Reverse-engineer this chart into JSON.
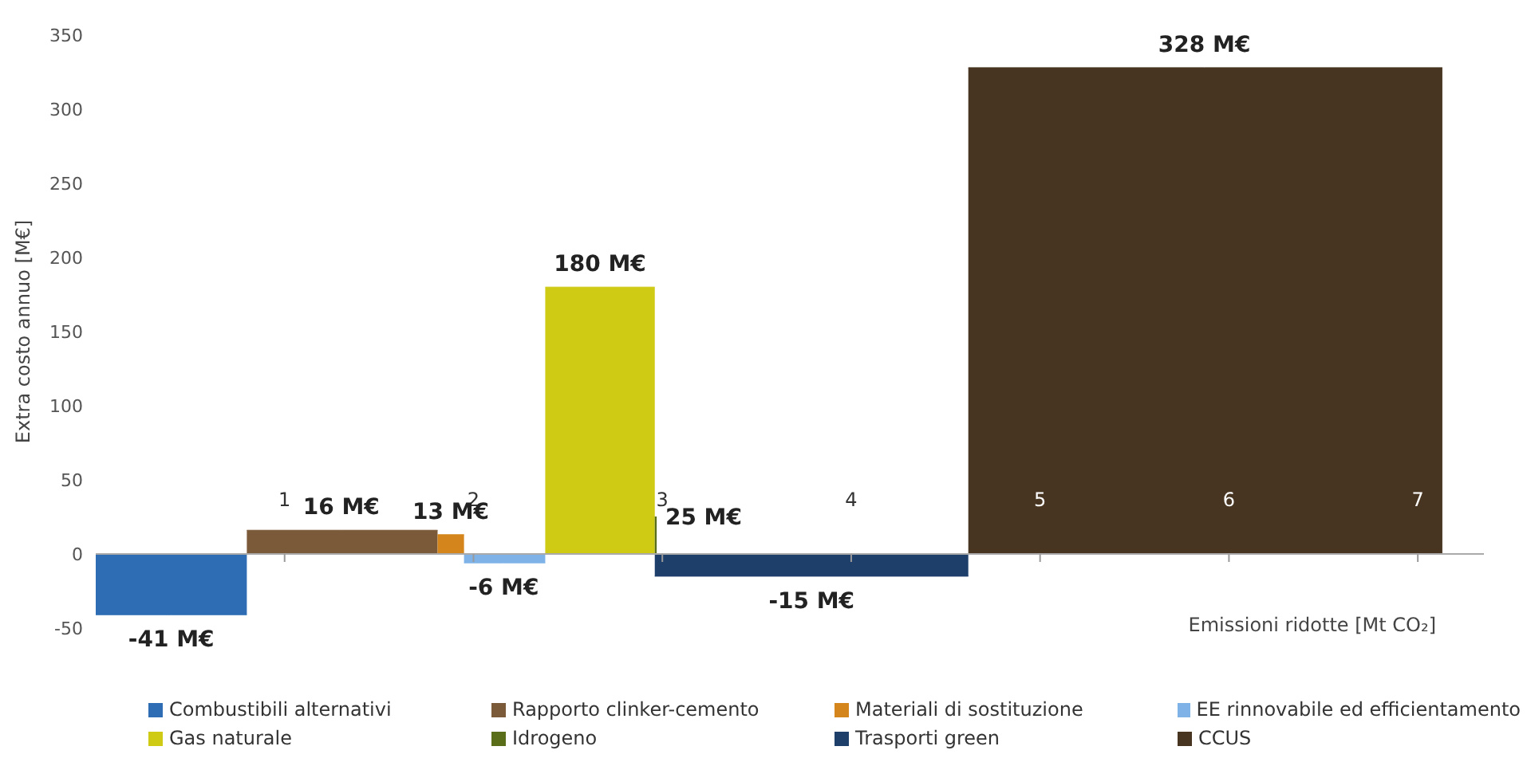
{
  "chart_data": {
    "type": "area",
    "ylabel": "Extra costo annuo [M€]",
    "xlabel": "Emissioni ridotte [Mt CO₂]",
    "xlim": [
      0,
      7.35
    ],
    "xticks": [
      1,
      2,
      3,
      4,
      5,
      6,
      7
    ],
    "ylim": [
      -50,
      350
    ],
    "yticks": [
      -50,
      0,
      50,
      100,
      150,
      200,
      250,
      300,
      350
    ],
    "grid": false,
    "legend": "bottom",
    "series": [
      {
        "name": "Combustibili alternativi",
        "color": "#2e6db4",
        "x": [
          0,
          0.4,
          0.8
        ],
        "values": [
          -41,
          -41,
          -41
        ],
        "value_labels": [
          null,
          "-41 M€",
          null
        ]
      },
      {
        "name": "Rapporto clinker-cemento",
        "color": "#7b5a3a",
        "x": [
          0.8,
          1.3,
          1.81
        ],
        "values": [
          16,
          16,
          16
        ],
        "value_labels": [
          null,
          "16 M€",
          null
        ]
      },
      {
        "name": "Materiali di sostituzione",
        "color": "#d4861c",
        "x": [
          1.81,
          1.88,
          1.95
        ],
        "values": [
          13,
          13,
          13
        ],
        "value_labels": [
          null,
          "13 M€",
          null
        ]
      },
      {
        "name": "EE rinnovabile ed efficientamento",
        "color": "#7fb3e8",
        "x": [
          1.95,
          2.16,
          2.38
        ],
        "values": [
          -6,
          -6,
          -6
        ],
        "value_labels": [
          null,
          "-6 M€",
          null
        ]
      },
      {
        "name": "Gas naturale",
        "color": "#cfca14",
        "x": [
          2.38,
          2.67,
          2.96
        ],
        "values": [
          180,
          180,
          180
        ],
        "value_labels": [
          null,
          "180 M€",
          null
        ]
      },
      {
        "name": "Idrogeno",
        "color": "#5a6e1a",
        "x": [
          2.96,
          2.965,
          2.97
        ],
        "values": [
          25,
          25,
          25
        ],
        "value_labels": [
          null,
          "25 M€",
          null
        ]
      },
      {
        "name": "Trasporti green",
        "color": "#1f3f6b",
        "x": [
          2.96,
          3.79,
          4.62
        ],
        "values": [
          -15,
          -15,
          -15
        ],
        "value_labels": [
          null,
          "-15 M€",
          null
        ]
      },
      {
        "name": "CCUS",
        "color": "#483521",
        "x": [
          4.62,
          5.87,
          7.13
        ],
        "values": [
          328,
          328,
          328
        ],
        "value_labels": [
          null,
          "328 M€",
          null
        ]
      }
    ]
  }
}
